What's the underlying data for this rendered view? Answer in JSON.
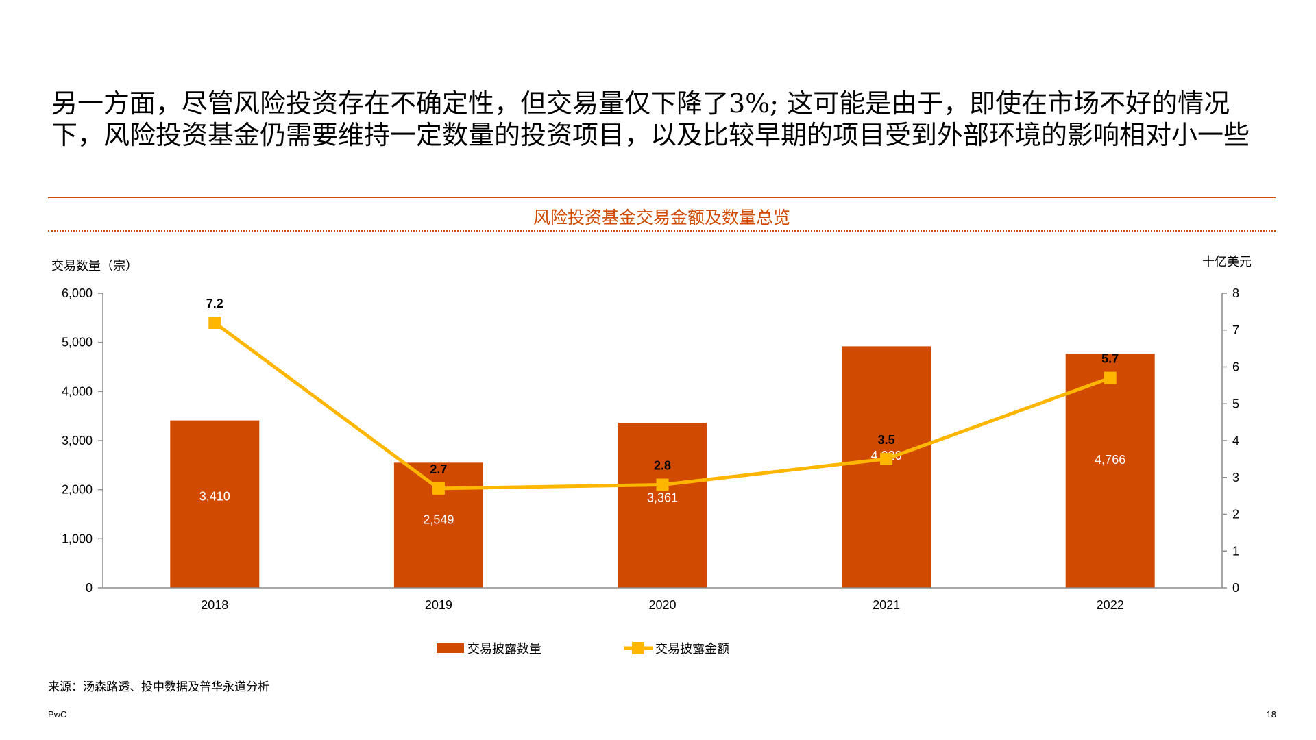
{
  "headline": "另一方面，尽管风险投资存在不确定性，但交易量仅下降了3%; 这可能是由于，即使在市场不好的情况下，风险投资基金仍需要维持一定数量的投资项目，以及比较早期的项目受到外部环境的影响相对小一些",
  "footer": {
    "source": "来源：汤森路透、投中数据及普华永道分析",
    "brand": "PwC",
    "page_number": "18"
  },
  "colors": {
    "accent": "#d04a02",
    "bar": "#d04a02",
    "line": "#ffb600"
  },
  "chart_data": {
    "type": "bar",
    "title": "风险投资基金交易金额及数量总览",
    "categories": [
      "2018",
      "2019",
      "2020",
      "2021",
      "2022"
    ],
    "ylabel": "交易数量（宗）",
    "ylabel_right": "十亿美元",
    "ylim": [
      0,
      6000
    ],
    "yticks": [
      "0",
      "1,000",
      "2,000",
      "3,000",
      "4,000",
      "5,000",
      "6,000"
    ],
    "ylim_right": [
      0,
      8
    ],
    "yticks_right": [
      "0",
      "1",
      "2",
      "3",
      "4",
      "5",
      "6",
      "7",
      "8"
    ],
    "legend_position": "bottom",
    "series": [
      {
        "name": "交易披露数量",
        "type": "bar",
        "axis": "left",
        "values": [
          3410,
          2549,
          3361,
          4920,
          4766
        ],
        "labels": [
          "3,410",
          "2,549",
          "3,361",
          "4,920",
          "4,766"
        ]
      },
      {
        "name": "交易披露金额",
        "type": "line",
        "axis": "right",
        "values": [
          7.2,
          2.7,
          2.8,
          3.5,
          5.7
        ],
        "labels": [
          "7.2",
          "2.7",
          "2.8",
          "3.5",
          "5.7"
        ]
      }
    ]
  }
}
